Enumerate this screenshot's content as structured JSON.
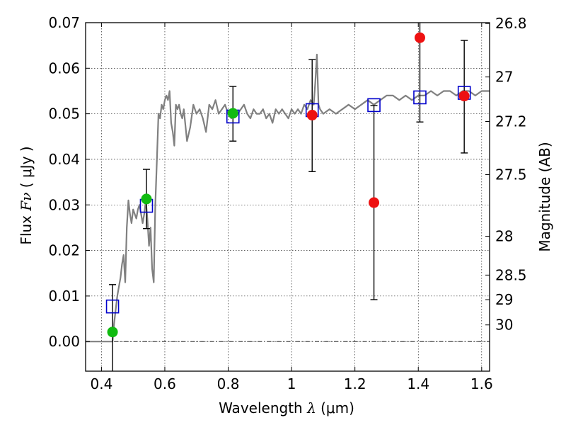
{
  "chart_data": {
    "type": "scatter",
    "xlabel_prefix": "Wavelength",
    "xlabel_symbol": "λ",
    "xlabel_unit": "(μm)",
    "ylabel_prefix": "Flux",
    "ylabel_symbol": "Fν",
    "ylabel_unit": "( μJy )",
    "y2label": "Magnitude (AB)",
    "xlim": [
      0.35,
      1.625
    ],
    "ylim": [
      -0.0065,
      0.07
    ],
    "grid": true,
    "x_ticks": [
      0.4,
      0.6,
      0.8,
      1.0,
      1.2,
      1.4,
      1.6
    ],
    "x_tick_labels": [
      "0.4",
      "0.6",
      "0.8",
      "1",
      "1.2",
      "1.4",
      "1.6"
    ],
    "y_ticks": [
      0.0,
      0.01,
      0.02,
      0.03,
      0.04,
      0.05,
      0.06,
      0.07
    ],
    "y_tick_labels": [
      "0.00",
      "0.01",
      "0.02",
      "0.03",
      "0.04",
      "0.05",
      "0.06",
      "0.07"
    ],
    "y2_ticks": [
      {
        "label": "26.8",
        "flux": 0.06982
      },
      {
        "label": "27",
        "flux": 0.05808
      },
      {
        "label": "27.2",
        "flux": 0.04831
      },
      {
        "label": "27.5",
        "flux": 0.03664
      },
      {
        "label": "28",
        "flux": 0.02312
      },
      {
        "label": "28.5",
        "flux": 0.01459
      },
      {
        "label": "29",
        "flux": 0.0092
      },
      {
        "label": "30",
        "flux": 0.00365
      }
    ],
    "zero_line": 0.0,
    "series": [
      {
        "name": "model_spectrum",
        "kind": "line",
        "color": "#808080",
        "x": [
          0.35,
          0.37,
          0.39,
          0.41,
          0.43,
          0.432,
          0.435,
          0.44,
          0.445,
          0.45,
          0.455,
          0.46,
          0.465,
          0.47,
          0.475,
          0.48,
          0.485,
          0.49,
          0.495,
          0.5,
          0.505,
          0.51,
          0.515,
          0.52,
          0.525,
          0.53,
          0.535,
          0.54,
          0.545,
          0.55,
          0.555,
          0.56,
          0.565,
          0.57,
          0.575,
          0.58,
          0.585,
          0.59,
          0.595,
          0.6,
          0.605,
          0.61,
          0.615,
          0.62,
          0.625,
          0.63,
          0.635,
          0.64,
          0.645,
          0.65,
          0.655,
          0.66,
          0.67,
          0.68,
          0.69,
          0.7,
          0.71,
          0.72,
          0.73,
          0.74,
          0.75,
          0.76,
          0.77,
          0.78,
          0.79,
          0.8,
          0.81,
          0.82,
          0.83,
          0.84,
          0.85,
          0.86,
          0.87,
          0.88,
          0.89,
          0.9,
          0.91,
          0.92,
          0.93,
          0.94,
          0.95,
          0.96,
          0.97,
          0.98,
          0.99,
          1.0,
          1.01,
          1.02,
          1.03,
          1.04,
          1.05,
          1.06,
          1.07,
          1.075,
          1.08,
          1.085,
          1.09,
          1.1,
          1.12,
          1.14,
          1.16,
          1.18,
          1.2,
          1.22,
          1.24,
          1.26,
          1.28,
          1.3,
          1.32,
          1.34,
          1.36,
          1.38,
          1.4,
          1.42,
          1.44,
          1.46,
          1.48,
          1.5,
          1.52,
          1.54,
          1.56,
          1.58,
          1.6,
          1.625
        ],
        "y": [
          0.0,
          0.0,
          0.0,
          0.0,
          0.0,
          0.0,
          0.0,
          0.004,
          0.007,
          0.01,
          0.012,
          0.014,
          0.017,
          0.019,
          0.013,
          0.025,
          0.031,
          0.028,
          0.026,
          0.029,
          0.028,
          0.027,
          0.029,
          0.03,
          0.028,
          0.026,
          0.028,
          0.031,
          0.027,
          0.021,
          0.025,
          0.016,
          0.013,
          0.03,
          0.04,
          0.05,
          0.049,
          0.052,
          0.051,
          0.053,
          0.054,
          0.053,
          0.055,
          0.048,
          0.046,
          0.043,
          0.052,
          0.051,
          0.052,
          0.05,
          0.049,
          0.051,
          0.044,
          0.047,
          0.052,
          0.05,
          0.051,
          0.049,
          0.046,
          0.052,
          0.051,
          0.053,
          0.05,
          0.051,
          0.052,
          0.05,
          0.049,
          0.051,
          0.05,
          0.051,
          0.052,
          0.05,
          0.049,
          0.051,
          0.05,
          0.05,
          0.051,
          0.049,
          0.05,
          0.048,
          0.051,
          0.05,
          0.051,
          0.05,
          0.049,
          0.051,
          0.05,
          0.051,
          0.05,
          0.052,
          0.051,
          0.053,
          0.052,
          0.057,
          0.063,
          0.052,
          0.051,
          0.05,
          0.051,
          0.05,
          0.051,
          0.052,
          0.051,
          0.052,
          0.053,
          0.052,
          0.053,
          0.054,
          0.054,
          0.053,
          0.054,
          0.053,
          0.054,
          0.054,
          0.055,
          0.054,
          0.055,
          0.055,
          0.054,
          0.055,
          0.055,
          0.054,
          0.055,
          0.055
        ]
      },
      {
        "name": "model_photometry",
        "kind": "open_square",
        "color": "#0000cc",
        "x": [
          0.435,
          0.542,
          0.815,
          1.065,
          1.26,
          1.405,
          1.545
        ],
        "y": [
          0.0077,
          0.0298,
          0.0494,
          0.0508,
          0.0519,
          0.0536,
          0.0546
        ]
      },
      {
        "name": "observed_detections",
        "kind": "filled_circle",
        "color": "#11bb11",
        "x": [
          0.435,
          0.542,
          0.815
        ],
        "y": [
          0.0021,
          0.0313,
          0.0501
        ]
      },
      {
        "name": "observed_low_sn",
        "kind": "filled_circle",
        "color": "#ee1111",
        "x": [
          1.065,
          1.26,
          1.405,
          1.545
        ],
        "y": [
          0.0497,
          0.0305,
          0.0667,
          0.0539
        ]
      }
    ],
    "error_bars": [
      {
        "x": 0.435,
        "low": -0.0065,
        "high": 0.0125
      },
      {
        "x": 0.542,
        "low": 0.0248,
        "high": 0.0378
      },
      {
        "x": 0.815,
        "low": 0.044,
        "high": 0.056
      },
      {
        "x": 1.065,
        "low": 0.0373,
        "high": 0.0619
      },
      {
        "x": 1.26,
        "low": 0.0092,
        "high": 0.0518
      },
      {
        "x": 1.405,
        "low": 0.0482,
        "high": 0.07
      },
      {
        "x": 1.545,
        "low": 0.0414,
        "high": 0.0661
      }
    ]
  }
}
